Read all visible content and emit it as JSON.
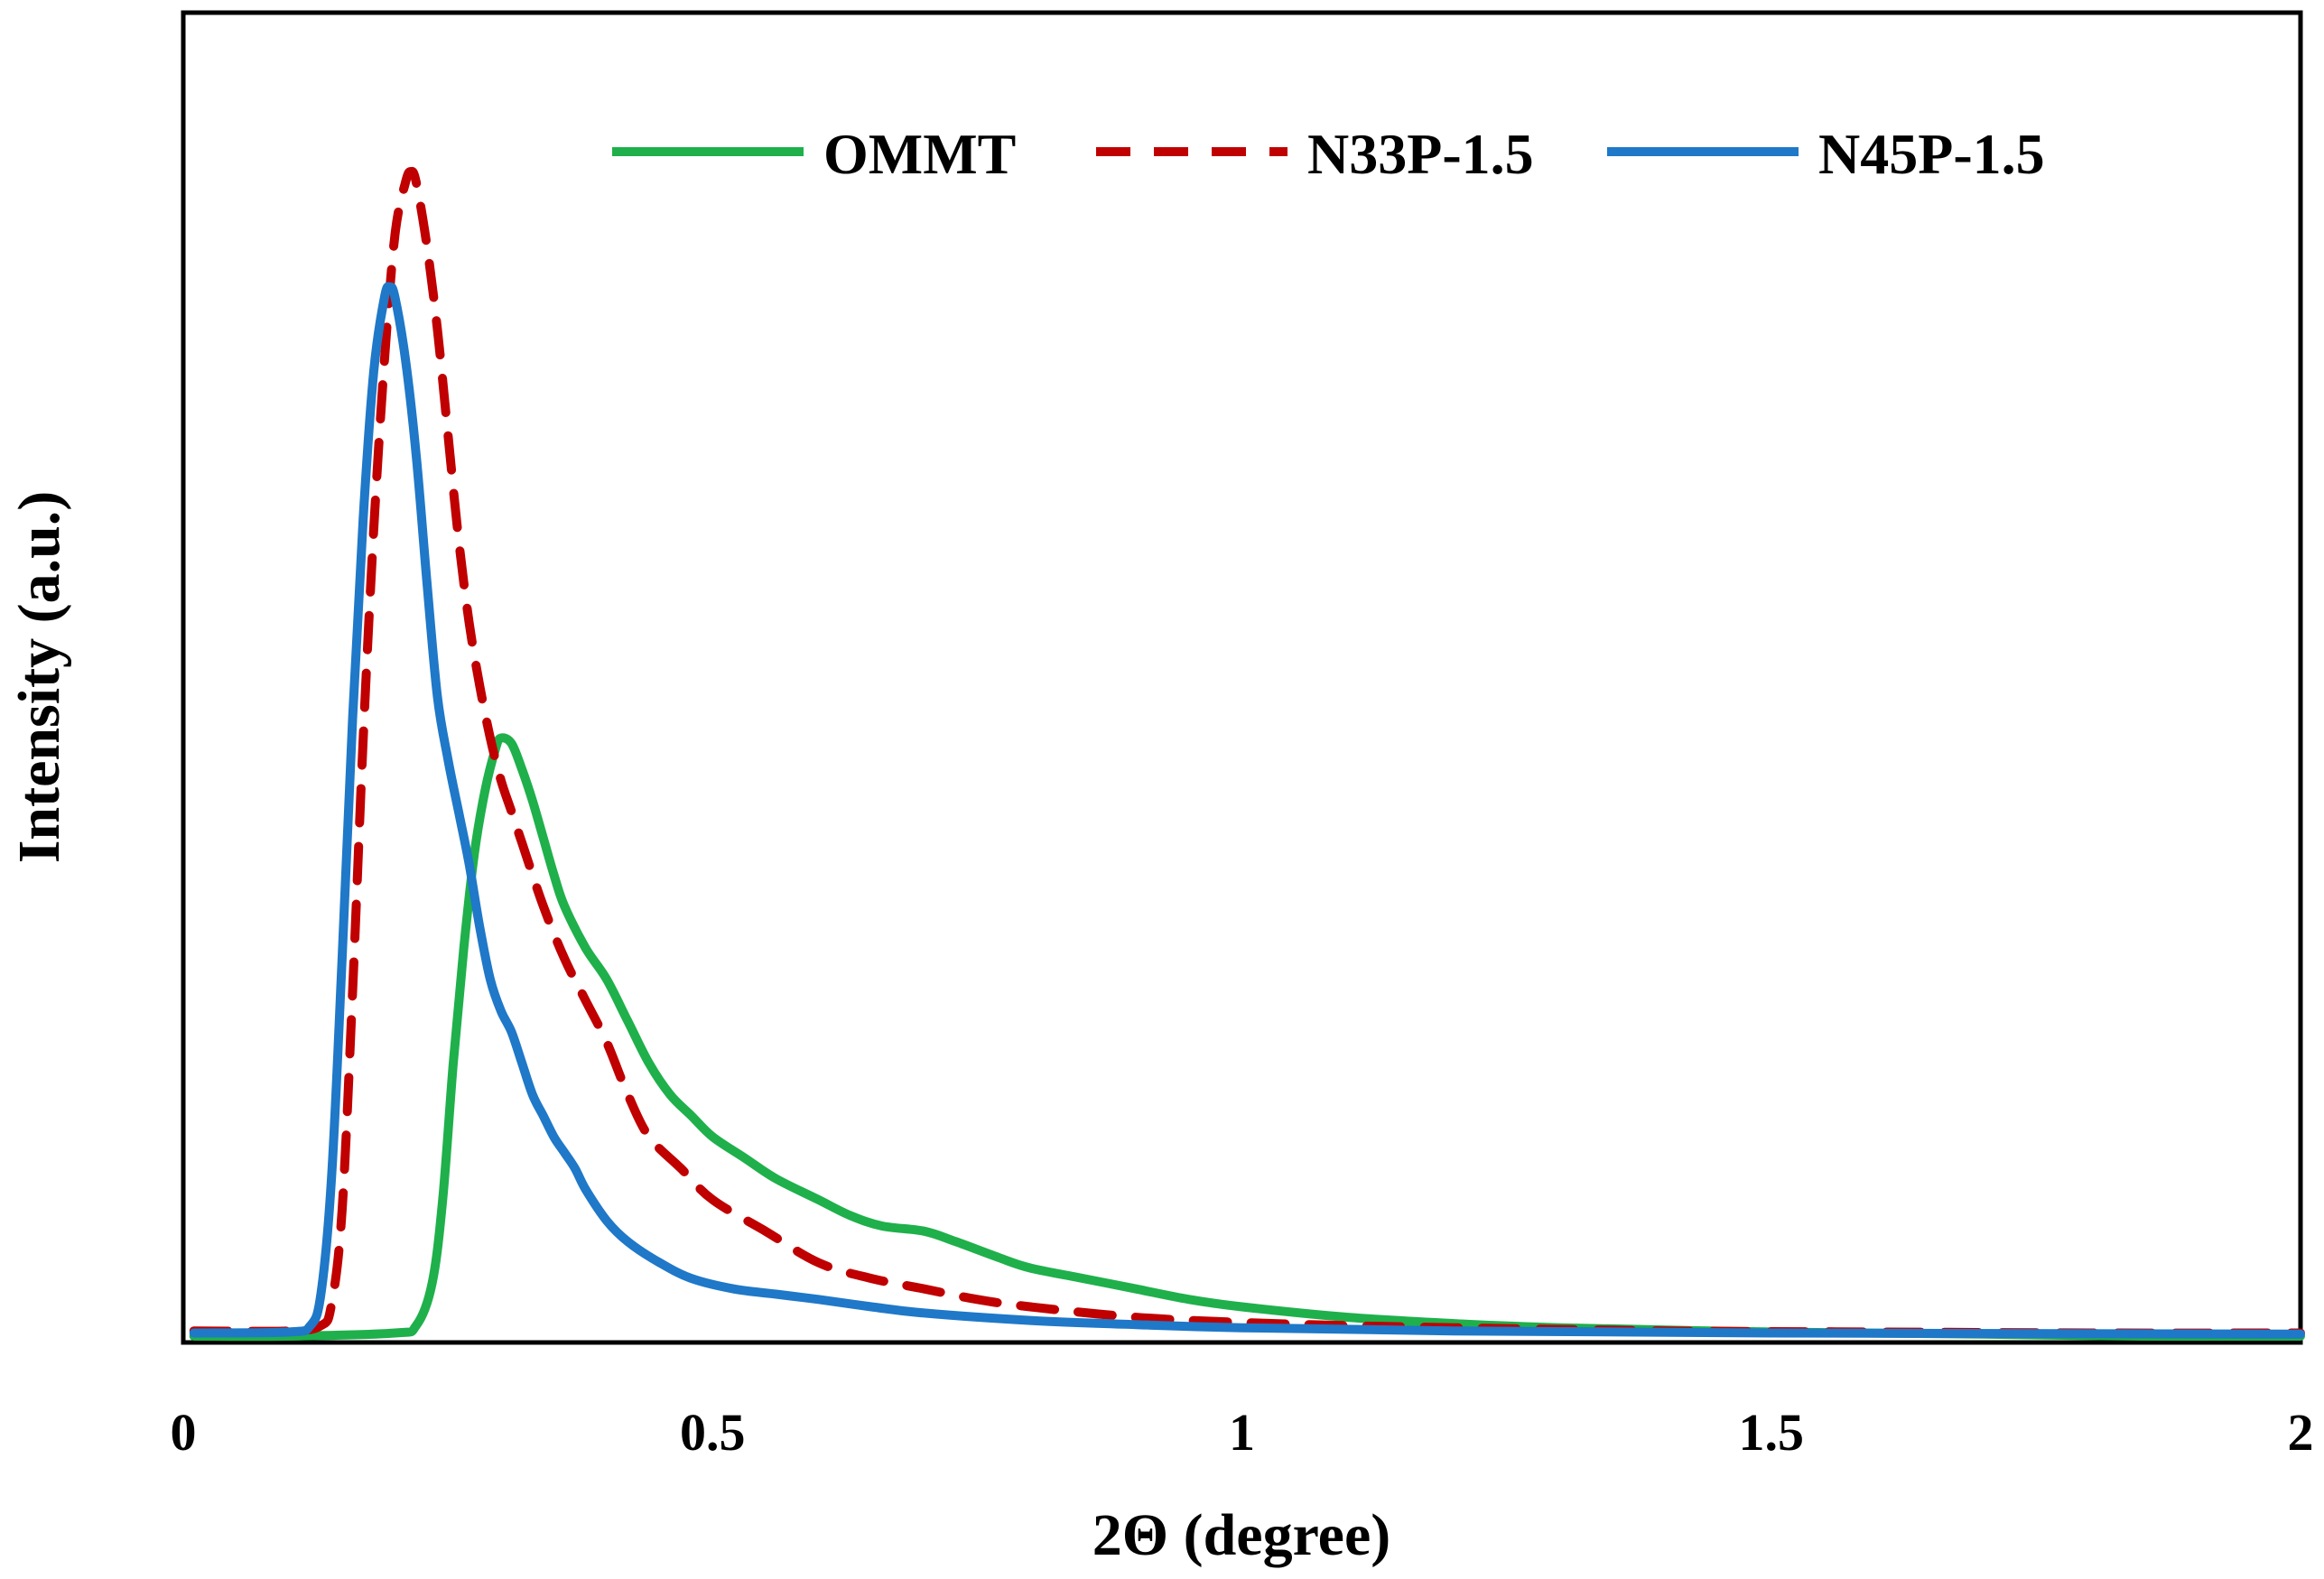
{
  "chart_data": {
    "type": "line",
    "title": "",
    "xlabel": "2Θ (degree)",
    "ylabel": "Intensity (a.u.)",
    "xlim": [
      0,
      2
    ],
    "ylim": [
      0,
      1.12
    ],
    "x_ticks": [
      "0",
      "0.5",
      "1",
      "1.5",
      "2"
    ],
    "x_tick_values": [
      0,
      0.5,
      1,
      1.5,
      2
    ],
    "grid": false,
    "legend_position": "top",
    "series": [
      {
        "name": "OMMT",
        "color": "#1fb04b",
        "dash": "solid",
        "x": [
          0.01,
          0.1,
          0.2,
          0.22,
          0.235,
          0.245,
          0.255,
          0.265,
          0.275,
          0.285,
          0.295,
          0.3,
          0.31,
          0.32,
          0.33,
          0.34,
          0.35,
          0.36,
          0.38,
          0.4,
          0.42,
          0.44,
          0.46,
          0.48,
          0.5,
          0.53,
          0.56,
          0.6,
          0.63,
          0.66,
          0.7,
          0.73,
          0.77,
          0.8,
          0.85,
          0.9,
          0.95,
          1.0,
          1.1,
          1.2,
          1.3,
          1.5,
          1.7,
          1.85,
          2.0
        ],
        "y": [
          0.0,
          0.0,
          0.003,
          0.01,
          0.05,
          0.13,
          0.26,
          0.37,
          0.46,
          0.52,
          0.56,
          0.57,
          0.565,
          0.54,
          0.51,
          0.475,
          0.44,
          0.41,
          0.37,
          0.34,
          0.3,
          0.26,
          0.23,
          0.21,
          0.19,
          0.17,
          0.15,
          0.13,
          0.115,
          0.105,
          0.1,
          0.09,
          0.075,
          0.065,
          0.055,
          0.045,
          0.035,
          0.028,
          0.018,
          0.012,
          0.008,
          0.004,
          0.002,
          0.0,
          0.0
        ]
      },
      {
        "name": "N33P-1.5",
        "color": "#c00000",
        "dash": "dashed",
        "x": [
          0.01,
          0.1,
          0.13,
          0.14,
          0.15,
          0.16,
          0.17,
          0.18,
          0.19,
          0.2,
          0.21,
          0.215,
          0.22,
          0.23,
          0.24,
          0.25,
          0.26,
          0.27,
          0.28,
          0.29,
          0.3,
          0.31,
          0.32,
          0.34,
          0.36,
          0.38,
          0.4,
          0.42,
          0.44,
          0.47,
          0.5,
          0.55,
          0.6,
          0.65,
          0.7,
          0.75,
          0.8,
          0.9,
          1.0,
          1.1,
          1.2,
          1.4,
          1.6,
          1.8,
          2.0
        ],
        "y": [
          0.005,
          0.005,
          0.01,
          0.03,
          0.12,
          0.33,
          0.57,
          0.77,
          0.93,
          1.05,
          1.1,
          1.11,
          1.1,
          1.04,
          0.96,
          0.86,
          0.76,
          0.68,
          0.62,
          0.57,
          0.53,
          0.5,
          0.47,
          0.41,
          0.36,
          0.32,
          0.28,
          0.23,
          0.19,
          0.16,
          0.13,
          0.1,
          0.07,
          0.055,
          0.045,
          0.035,
          0.028,
          0.018,
          0.013,
          0.01,
          0.008,
          0.005,
          0.004,
          0.003,
          0.003
        ]
      },
      {
        "name": "N45P-1.5",
        "color": "#1f78c8",
        "dash": "solid",
        "x": [
          0.01,
          0.1,
          0.12,
          0.13,
          0.14,
          0.15,
          0.16,
          0.17,
          0.18,
          0.19,
          0.195,
          0.2,
          0.21,
          0.22,
          0.23,
          0.24,
          0.25,
          0.26,
          0.27,
          0.28,
          0.29,
          0.3,
          0.31,
          0.32,
          0.33,
          0.34,
          0.35,
          0.36,
          0.37,
          0.38,
          0.4,
          0.42,
          0.45,
          0.48,
          0.52,
          0.56,
          0.6,
          0.65,
          0.7,
          0.8,
          0.9,
          1.0,
          1.2,
          1.5,
          2.0
        ],
        "y": [
          0.003,
          0.004,
          0.01,
          0.04,
          0.15,
          0.36,
          0.59,
          0.78,
          0.92,
          0.99,
          1.0,
          0.99,
          0.93,
          0.84,
          0.72,
          0.61,
          0.55,
          0.5,
          0.45,
          0.39,
          0.34,
          0.31,
          0.29,
          0.26,
          0.23,
          0.21,
          0.19,
          0.175,
          0.16,
          0.14,
          0.11,
          0.09,
          0.07,
          0.055,
          0.045,
          0.04,
          0.035,
          0.028,
          0.022,
          0.015,
          0.011,
          0.008,
          0.005,
          0.003,
          0.002
        ]
      }
    ]
  }
}
